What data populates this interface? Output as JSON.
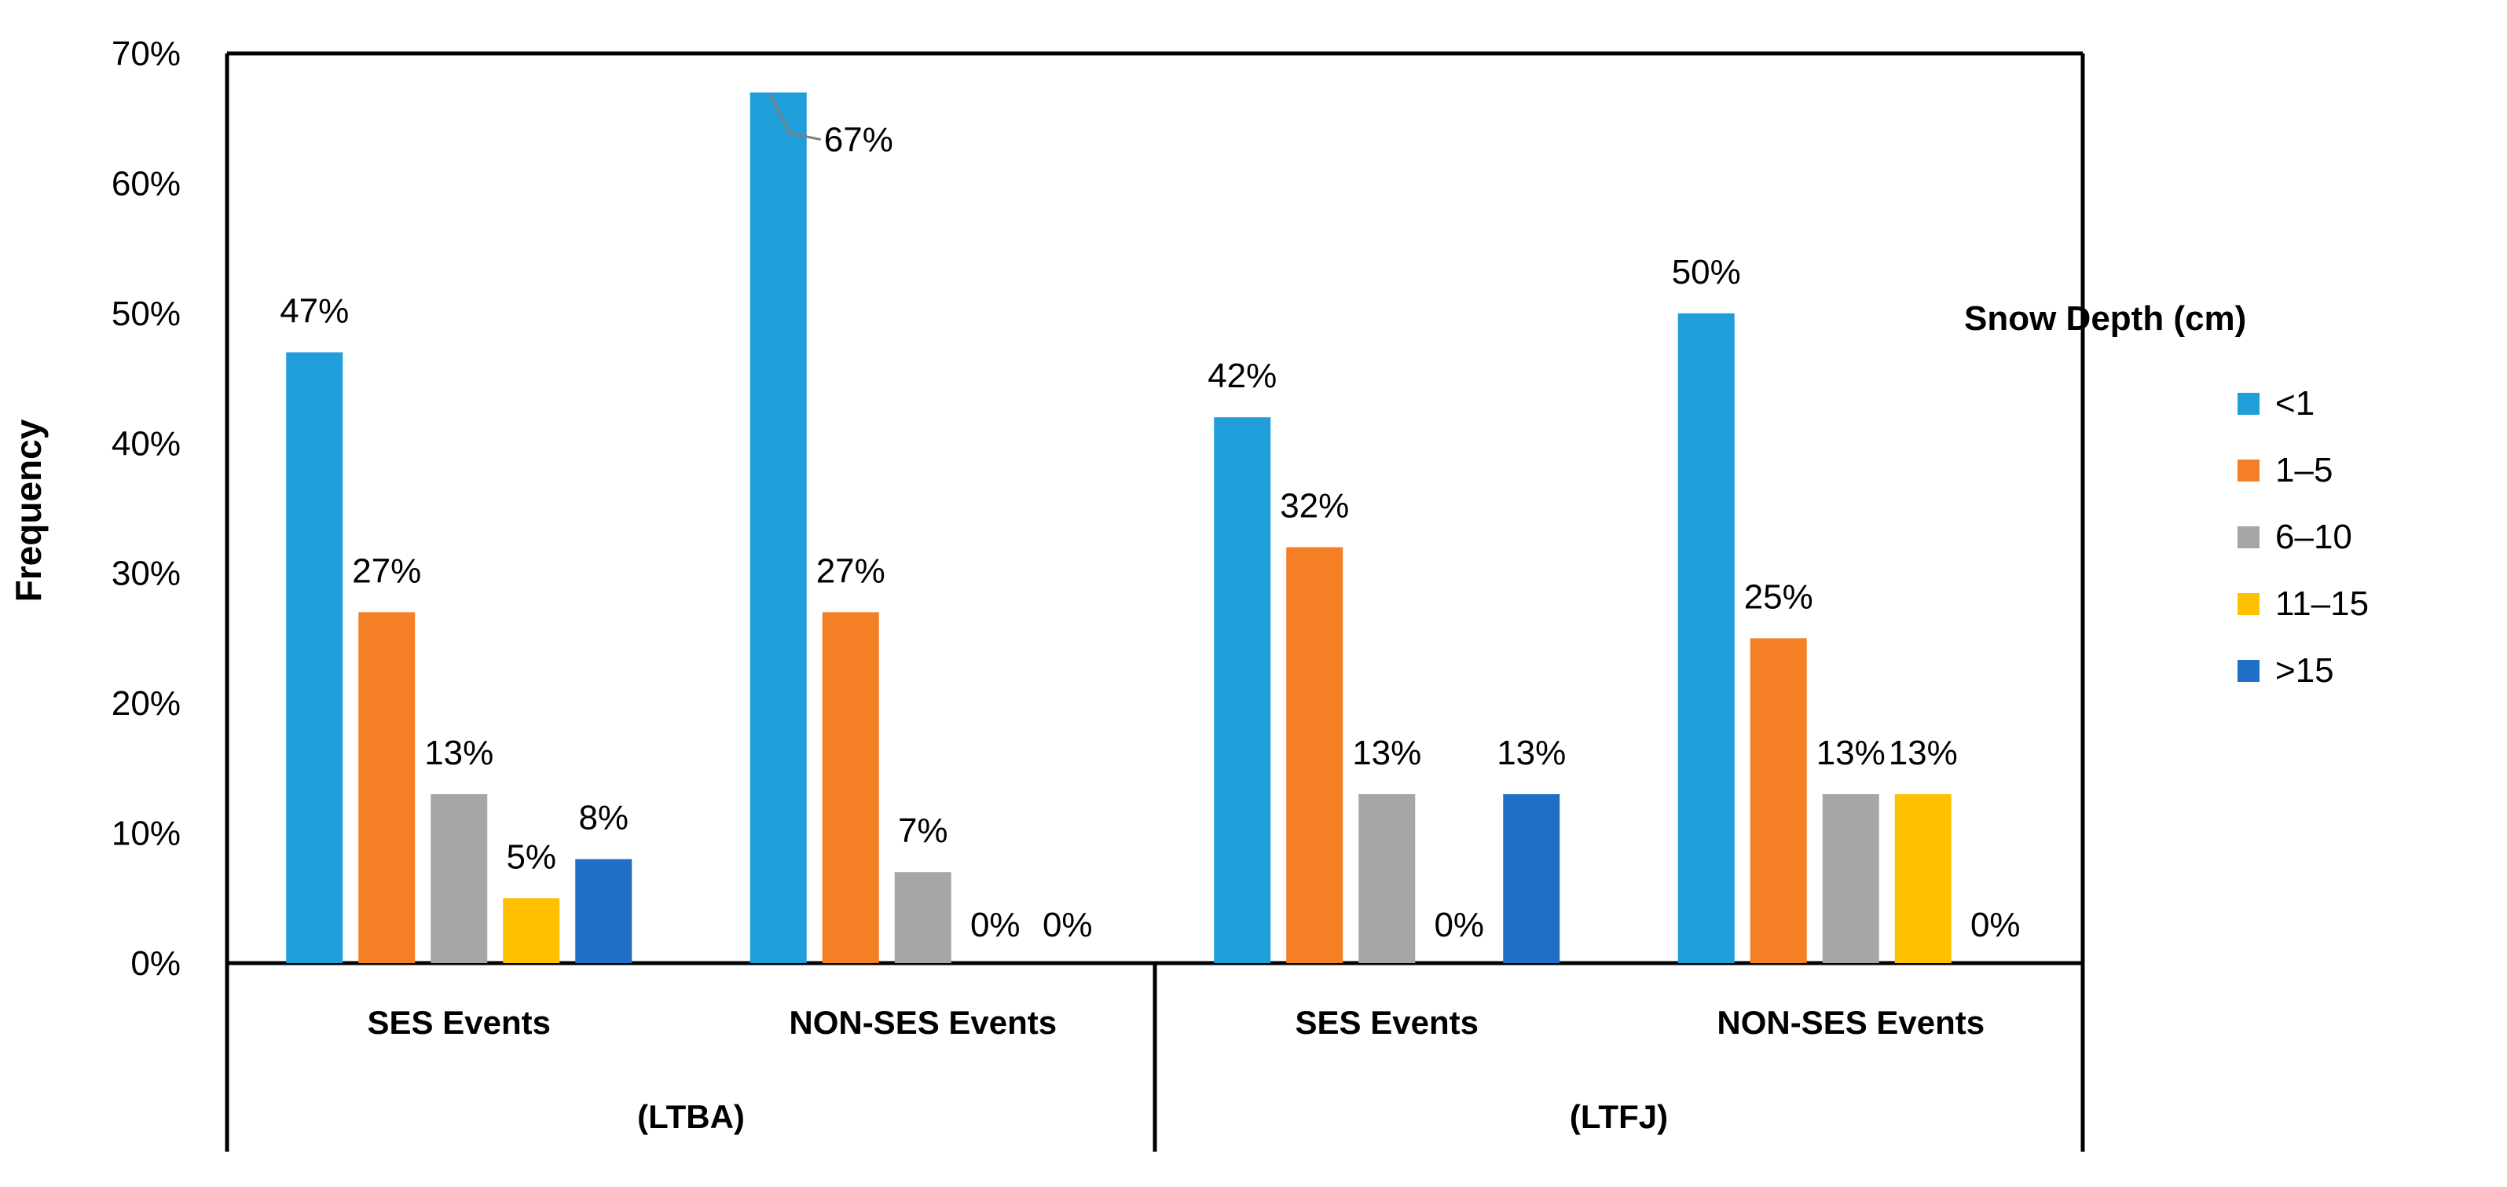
{
  "chart_data": {
    "type": "bar",
    "title": "",
    "xlabel": "",
    "ylabel": "Frequency",
    "ylim": [
      0,
      70
    ],
    "yticks": [
      "0%",
      "10%",
      "20%",
      "30%",
      "40%",
      "50%",
      "60%",
      "70%"
    ],
    "grid": false,
    "legend": {
      "title": "Snow Depth (cm)",
      "placement": "right"
    },
    "groups": [
      "(LTBA)",
      "(LTFJ)"
    ],
    "categories": [
      "SES Events",
      "NON-SES Events",
      "SES Events",
      "NON-SES Events"
    ],
    "series": [
      {
        "name": "<1",
        "color": "#1f9ed9",
        "values": [
          47,
          67,
          42,
          50
        ],
        "labels": [
          "47%",
          "67%",
          "42%",
          "50%"
        ]
      },
      {
        "name": "1–5",
        "color": "#f57f25",
        "values": [
          27,
          27,
          32,
          25
        ],
        "labels": [
          "27%",
          "27%",
          "32%",
          "25%"
        ]
      },
      {
        "name": "6–10",
        "color": "#a6a6a6",
        "values": [
          13,
          7,
          13,
          13
        ],
        "labels": [
          "13%",
          "7%",
          "13%",
          "13%"
        ]
      },
      {
        "name": "11–15",
        "color": "#ffc000",
        "values": [
          5,
          0,
          0,
          13
        ],
        "labels": [
          "5%",
          "0%",
          "0%",
          "13%"
        ]
      },
      {
        "name": ">15",
        "color": "#1f6fc6",
        "values": [
          8,
          0,
          13,
          0
        ],
        "labels": [
          "8%",
          "0%",
          "13%",
          "0%"
        ]
      }
    ]
  }
}
